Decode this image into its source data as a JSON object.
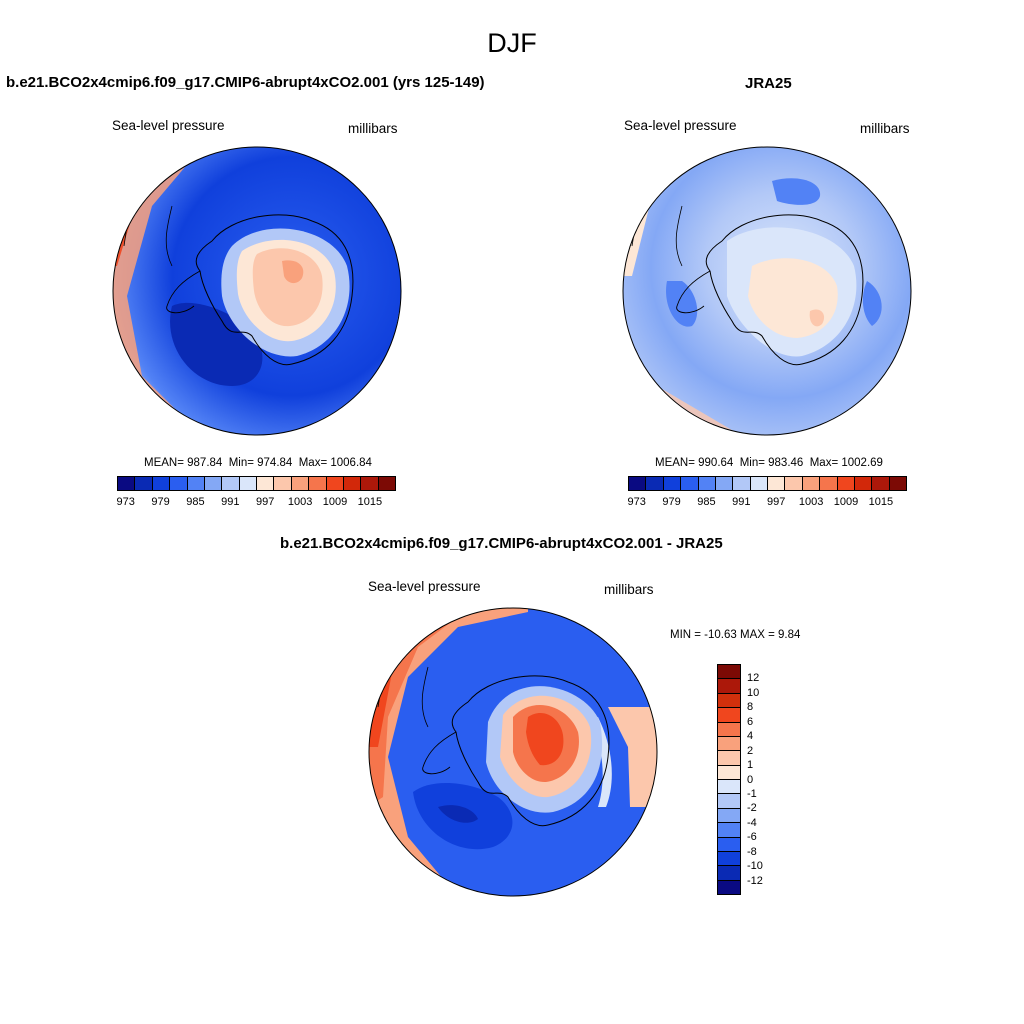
{
  "figure": {
    "season": "DJF",
    "panel_model": {
      "title": "b.e21.BCO2x4cmip6.f09_g17.CMIP6-abrupt4xCO2.001 (yrs 125-149)",
      "variable": "Sea-level pressure",
      "units": "millibars",
      "mean": "MEAN= 987.84",
      "min": "Min= 974.84",
      "max": "Max= 1006.84"
    },
    "panel_obs": {
      "title": "JRA25",
      "variable": "Sea-level pressure",
      "units": "millibars",
      "mean": "MEAN= 990.64",
      "min": "Min= 983.46",
      "max": "Max= 1002.69"
    },
    "panel_diff": {
      "title": "b.e21.BCO2x4cmip6.f09_g17.CMIP6-abrupt4xCO2.001 - JRA25",
      "variable": "Sea-level pressure",
      "units": "millibars",
      "minmax": "MIN = -10.63 MAX =   9.84"
    }
  },
  "colorbar_abs": {
    "colors": [
      "#0a0a82",
      "#0a2ab4",
      "#1040dc",
      "#2a5ef0",
      "#5282f5",
      "#84a8f5",
      "#b2c8f7",
      "#dae6fa",
      "#fde7d6",
      "#fcc7ac",
      "#f9a17c",
      "#f5754c",
      "#f0461e",
      "#d2280a",
      "#ac180a",
      "#7c0a05"
    ],
    "tick_labels": [
      "973",
      "979",
      "985",
      "991",
      "997",
      "1003",
      "1009",
      "1015"
    ]
  },
  "colorbar_diff": {
    "colors": [
      "#7c0a05",
      "#ac180a",
      "#d2300c",
      "#f0461e",
      "#f5754c",
      "#f9a17c",
      "#fcc7ac",
      "#fde7d6",
      "#dae6fa",
      "#b2c8f7",
      "#84a8f5",
      "#5282f5",
      "#2a5ef0",
      "#1040dc",
      "#0a2ab4",
      "#0a0a82"
    ],
    "tick_labels": [
      "12",
      "10",
      "8",
      "6",
      "4",
      "2",
      "1",
      "0",
      "-1",
      "-2",
      "-4",
      "-6",
      "-8",
      "-10",
      "-12"
    ]
  }
}
